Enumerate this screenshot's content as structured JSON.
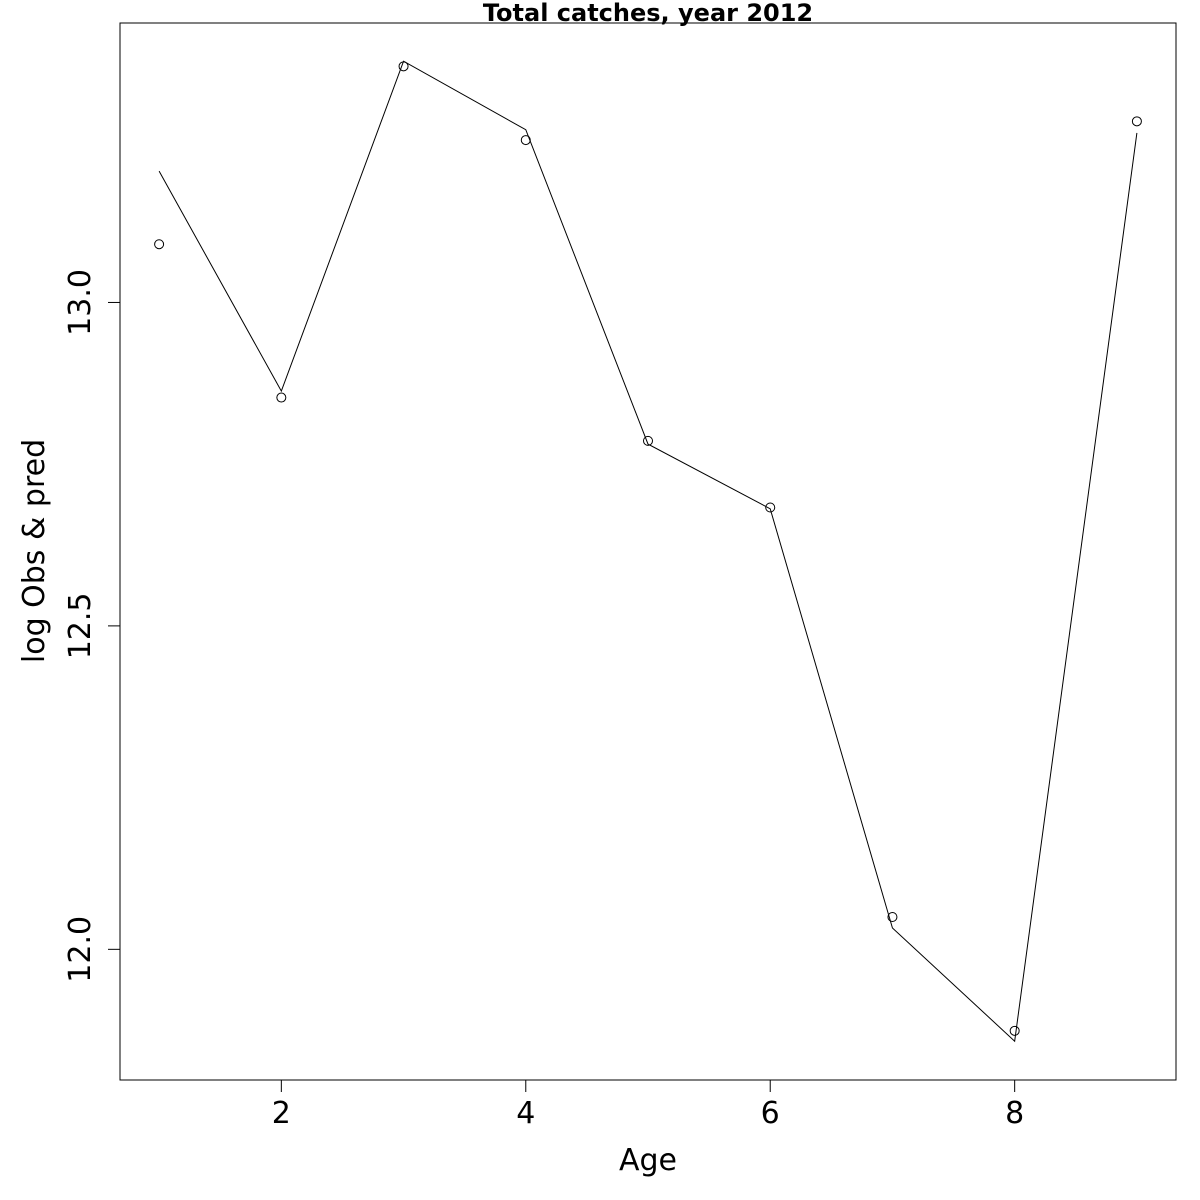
{
  "chart_data": {
    "type": "line",
    "title": "Total catches, year 2012",
    "xlabel": "Age",
    "ylabel": "log Obs & pred",
    "x": [
      1,
      2,
      3,
      4,
      5,
      6,
      7,
      8,
      9
    ],
    "series": [
      {
        "style": "points",
        "values": [
          13.09,
          12.853,
          13.365,
          13.251,
          12.786,
          12.683,
          12.05,
          11.874,
          13.28
        ]
      },
      {
        "style": "line",
        "values": [
          13.203,
          12.863,
          13.373,
          13.267,
          12.781,
          12.681,
          12.033,
          11.858,
          13.262
        ]
      }
    ],
    "xlim": [
      0.68,
      9.32
    ],
    "ylim": [
      11.798,
      13.432
    ],
    "x_ticks": [
      2,
      4,
      6,
      8
    ],
    "x_tick_labels": [
      "2",
      "4",
      "6",
      "8"
    ],
    "y_ticks": [
      12.0,
      12.5,
      13.0
    ],
    "y_tick_labels": [
      "12.0",
      "12.5",
      "13.0"
    ],
    "grid": false,
    "legend": "none"
  }
}
